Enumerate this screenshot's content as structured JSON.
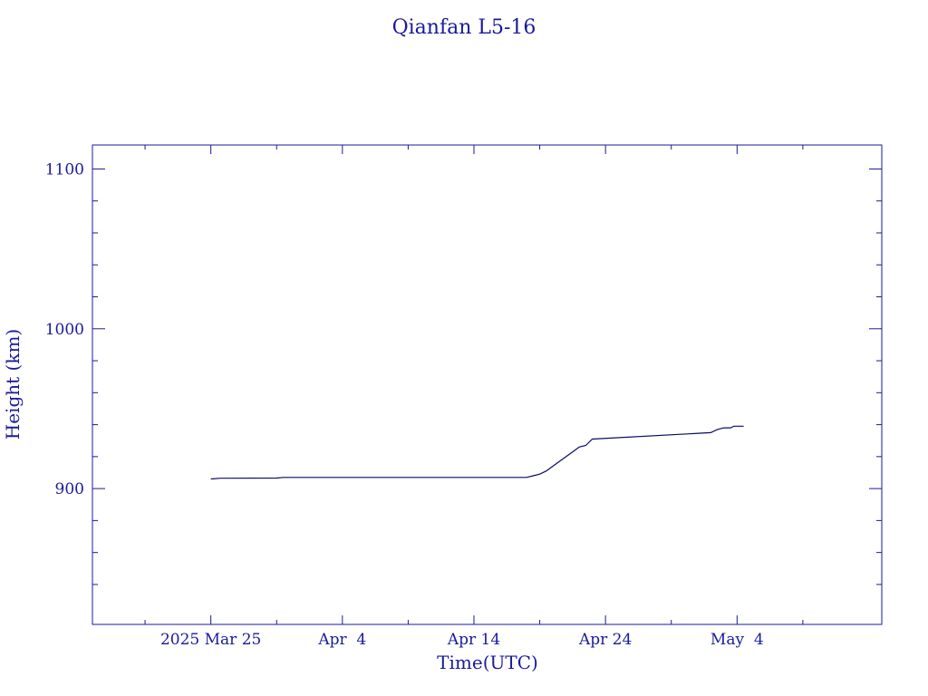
{
  "chart_data": {
    "type": "line",
    "title": "Qianfan L5-16",
    "xlabel": "Time(UTC)",
    "ylabel": "Height (km)",
    "colors": {
      "axes": "#1a1a9c",
      "line": "#0a0a66"
    },
    "xlim": [
      "2025-03-16",
      "2025-05-15"
    ],
    "ylim": [
      815,
      1115
    ],
    "x_major_ticks": [
      {
        "date": "2025-03-25",
        "label": "2025 Mar 25"
      },
      {
        "date": "2025-04-04",
        "label": "Apr  4"
      },
      {
        "date": "2025-04-14",
        "label": "Apr 14"
      },
      {
        "date": "2025-04-24",
        "label": "Apr 24"
      },
      {
        "date": "2025-05-04",
        "label": "May  4"
      }
    ],
    "x_minor_ticks": [
      "2025-03-20",
      "2025-03-30",
      "2025-04-09",
      "2025-04-19",
      "2025-04-29",
      "2025-05-09"
    ],
    "y_major_ticks": [
      {
        "value": 900,
        "label": "900"
      },
      {
        "value": 1000,
        "label": "1000"
      },
      {
        "value": 1100,
        "label": "1100"
      }
    ],
    "y_minor_ticks": [
      840,
      860,
      880,
      920,
      940,
      960,
      980,
      1020,
      1040,
      1060,
      1080
    ],
    "series": [
      {
        "x": [
          "2025-03-25",
          "2025-03-25T18:00",
          "2025-03-30",
          "2025-03-30T12:00",
          "2025-04-08",
          "2025-04-18",
          "2025-04-18T12:00",
          "2025-04-19",
          "2025-04-19T12:00",
          "2025-04-20",
          "2025-04-20T12:00",
          "2025-04-21",
          "2025-04-21T12:00",
          "2025-04-22",
          "2025-04-22T12:00",
          "2025-04-23",
          "2025-05-02",
          "2025-05-02T12:00",
          "2025-05-03",
          "2025-05-03T12:00",
          "2025-05-03T18:00",
          "2025-05-04",
          "2025-05-04T12:00"
        ],
        "y": [
          906,
          906.5,
          906.6,
          907,
          907,
          907,
          908,
          909,
          911,
          914,
          917,
          920,
          923,
          926,
          927,
          931,
          935,
          937,
          938,
          938,
          939,
          939,
          939
        ]
      }
    ]
  }
}
